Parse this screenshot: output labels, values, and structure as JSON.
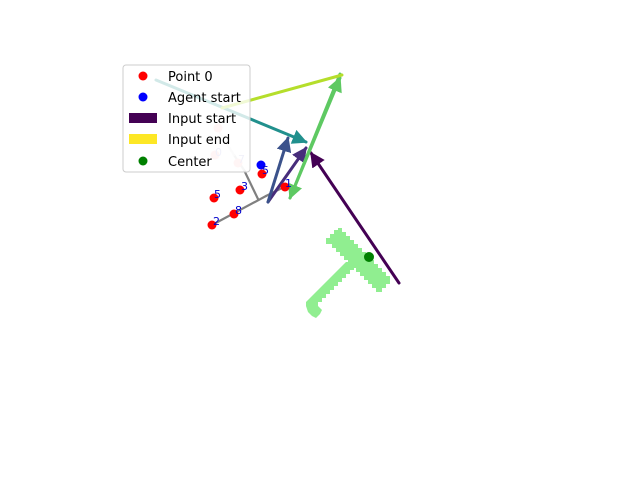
{
  "legend": {
    "items": [
      {
        "label": "Point 0",
        "kind": "dot",
        "color": "#ff0000"
      },
      {
        "label": "Agent start",
        "kind": "dot",
        "color": "#0000ff"
      },
      {
        "label": "Input start",
        "kind": "patch",
        "color": "#440154"
      },
      {
        "label": "Input end",
        "kind": "patch",
        "color": "#fde725"
      },
      {
        "label": "Center",
        "kind": "dot",
        "color": "#008000"
      }
    ]
  },
  "colors": {
    "t_shape": "#90ee90",
    "center": "#008000",
    "point": "#ff0000",
    "agent": "#0000ff",
    "skeleton": "#808080"
  },
  "point_labels": [
    "0",
    "7",
    "5",
    "3",
    "1",
    "5",
    "8",
    "2"
  ]
}
